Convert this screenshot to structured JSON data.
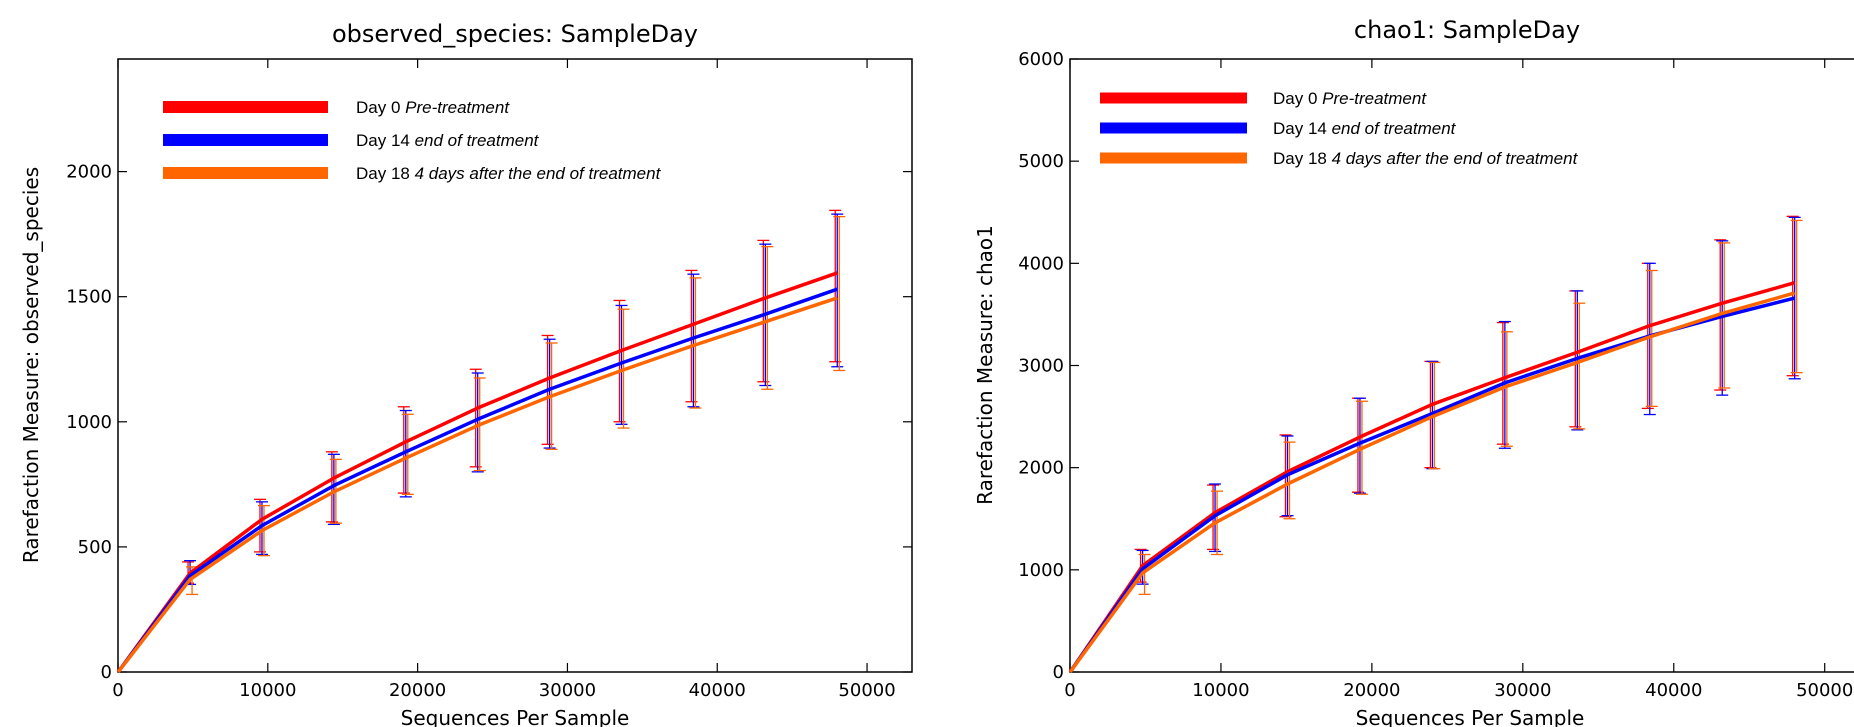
{
  "chart_data": [
    {
      "type": "line",
      "title": "observed_species: SampleDay",
      "xlabel": "Sequences Per Sample",
      "ylabel": "Rarefaction Measure: observed_species",
      "xlim": [
        0,
        53000
      ],
      "ylim": [
        0,
        2450
      ],
      "xticks": [
        "0",
        "10000",
        "20000",
        "30000",
        "40000",
        "50000"
      ],
      "yticks": [
        "0",
        "500",
        "1000",
        "1500",
        "2000"
      ],
      "grid": false,
      "legend_position": "top-left",
      "x": [
        10,
        4810,
        9610,
        14410,
        19210,
        24010,
        28810,
        33610,
        38410,
        43210,
        48010
      ],
      "series": [
        {
          "name": "Day 0",
          "note": "Pre-treatment",
          "color": "#ff0000",
          "values": [
            0,
            395,
            610,
            775,
            920,
            1055,
            1175,
            1285,
            1390,
            1495,
            1595
          ],
          "err_low": [
            0,
            355,
            480,
            600,
            715,
            820,
            910,
            1000,
            1080,
            1160,
            1240
          ],
          "err_high": [
            0,
            440,
            690,
            880,
            1060,
            1210,
            1345,
            1485,
            1605,
            1725,
            1845
          ]
        },
        {
          "name": "Day 14",
          "note": "end of treatment",
          "color": "#0000ff",
          "values": [
            0,
            385,
            585,
            745,
            880,
            1010,
            1130,
            1235,
            1335,
            1430,
            1530
          ],
          "err_low": [
            0,
            350,
            470,
            590,
            700,
            800,
            895,
            990,
            1060,
            1145,
            1220
          ],
          "err_high": [
            0,
            445,
            680,
            870,
            1045,
            1195,
            1330,
            1465,
            1590,
            1710,
            1830
          ]
        },
        {
          "name": "Day 18",
          "note": "4 days after the end of treatment",
          "color": "#ff6600",
          "values": [
            0,
            370,
            565,
            720,
            855,
            985,
            1100,
            1205,
            1305,
            1400,
            1495
          ],
          "err_low": [
            0,
            310,
            465,
            595,
            710,
            805,
            890,
            975,
            1055,
            1130,
            1205
          ],
          "err_high": [
            0,
            420,
            665,
            850,
            1030,
            1175,
            1315,
            1450,
            1575,
            1700,
            1820
          ]
        }
      ]
    },
    {
      "type": "line",
      "title": "chao1: SampleDay",
      "xlabel": "Sequences Per Sample",
      "ylabel": "Rarefaction Measure: chao1",
      "xlim": [
        0,
        53000
      ],
      "ylim": [
        0,
        6000
      ],
      "xticks": [
        "0",
        "10000",
        "20000",
        "30000",
        "40000",
        "50000"
      ],
      "yticks": [
        "0",
        "1000",
        "2000",
        "3000",
        "4000",
        "5000",
        "6000"
      ],
      "grid": false,
      "legend_position": "top-left",
      "x": [
        10,
        4810,
        9610,
        14410,
        19210,
        24010,
        28810,
        33610,
        38410,
        43210,
        48010
      ],
      "series": [
        {
          "name": "Day 0",
          "note": "Pre-treatment",
          "color": "#ff0000",
          "values": [
            0,
            1040,
            1560,
            1960,
            2300,
            2620,
            2880,
            3130,
            3390,
            3610,
            3810
          ],
          "err_low": [
            0,
            880,
            1200,
            1520,
            1760,
            2000,
            2230,
            2400,
            2580,
            2760,
            2900
          ],
          "err_high": [
            0,
            1200,
            1830,
            2320,
            2680,
            3040,
            3420,
            3730,
            4000,
            4230,
            4460
          ]
        },
        {
          "name": "Day 14",
          "note": "end of treatment",
          "color": "#0000ff",
          "values": [
            0,
            1010,
            1530,
            1930,
            2240,
            2530,
            2830,
            3070,
            3290,
            3480,
            3660
          ],
          "err_low": [
            0,
            860,
            1180,
            1530,
            1750,
            1990,
            2190,
            2370,
            2520,
            2710,
            2870
          ],
          "err_high": [
            0,
            1190,
            1840,
            2310,
            2680,
            3040,
            3430,
            3730,
            4000,
            4220,
            4450
          ]
        },
        {
          "name": "Day 18",
          "note": "4 days after the end of treatment",
          "color": "#ff6600",
          "values": [
            0,
            970,
            1460,
            1840,
            2180,
            2500,
            2790,
            3030,
            3280,
            3510,
            3710
          ],
          "err_low": [
            0,
            760,
            1150,
            1500,
            1740,
            1990,
            2210,
            2380,
            2600,
            2780,
            2930
          ],
          "err_high": [
            0,
            1150,
            1770,
            2250,
            2650,
            3030,
            3330,
            3610,
            3930,
            4200,
            4420
          ]
        }
      ]
    }
  ]
}
